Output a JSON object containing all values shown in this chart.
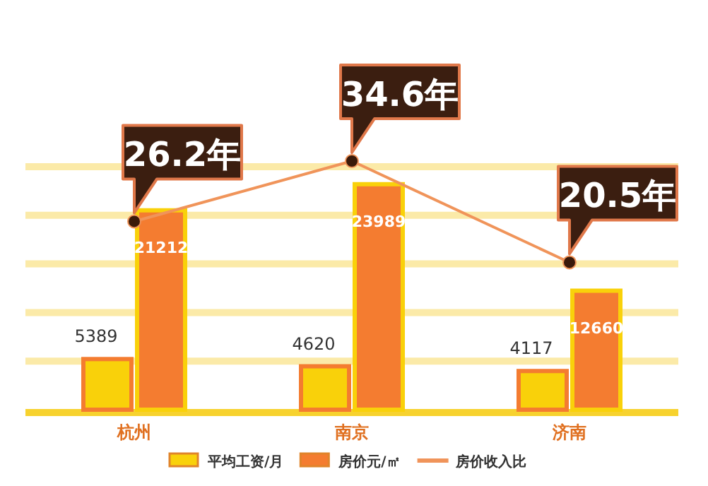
{
  "chart_data": {
    "type": "bar",
    "categories": [
      "杭州",
      "南京",
      "济南"
    ],
    "ylim": [
      0,
      25850
    ],
    "yticks": [
      {
        "value": 5170,
        "label": null
      },
      {
        "value": 10340,
        "label": null
      },
      {
        "value": 15510,
        "label": null
      },
      {
        "value": 20680,
        "label": null
      },
      {
        "value": 25850,
        "label": null
      }
    ],
    "tick_labels": "x",
    "series": [
      {
        "name": "平均工资/月",
        "color": "#f9d10a",
        "values": [
          5389,
          4620,
          4117
        ],
        "value_labels": [
          "5389",
          "4620",
          "4117"
        ]
      },
      {
        "name": "房价元/㎡",
        "color": "#f47c30",
        "values": [
          21212,
          23989,
          12660
        ],
        "value_labels": [
          "21212",
          "23989",
          "12660"
        ]
      },
      {
        "name": "房价收入比",
        "type": "line",
        "axis": "y2",
        "color": "#f0945a",
        "marker": "circle",
        "values": [
          26.2,
          34.6,
          20.5
        ],
        "value_labels": [
          "26.2年",
          "34.6年",
          "20.5年"
        ]
      }
    ],
    "grid": "y",
    "legend": "bottom"
  }
}
